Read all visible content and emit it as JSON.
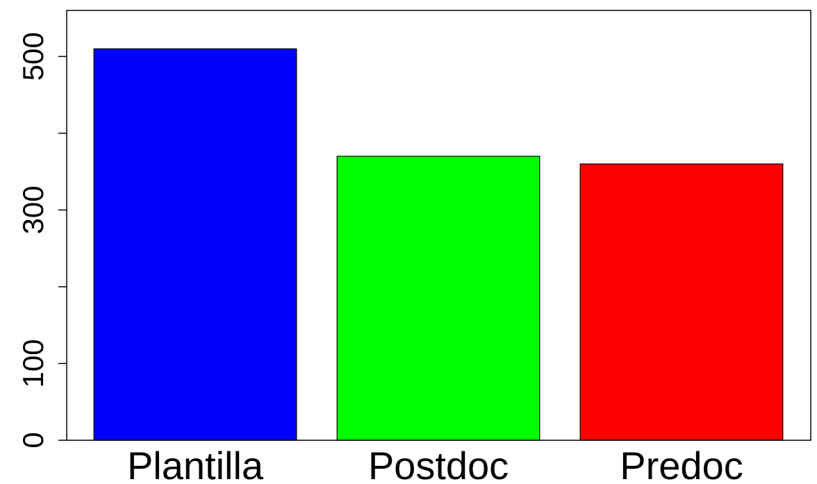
{
  "chart_data": {
    "type": "bar",
    "categories": [
      "Plantilla",
      "Postdoc",
      "Predoc"
    ],
    "values": [
      510,
      370,
      360
    ],
    "colors": [
      "#0000ff",
      "#00ff00",
      "#ff0000"
    ],
    "ylim": [
      0,
      560
    ],
    "yticks": [
      0,
      100,
      200,
      300,
      400,
      500
    ],
    "ytick_labels": [
      "0",
      "100",
      "",
      "300",
      "",
      "500"
    ],
    "title": "",
    "xlabel": "",
    "ylabel": "",
    "grid": false,
    "legend": "none"
  }
}
